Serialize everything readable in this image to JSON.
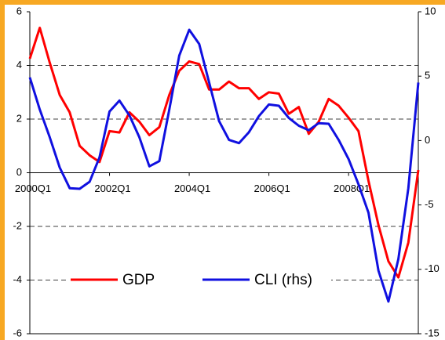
{
  "chart_data": {
    "type": "line",
    "categories": [
      "2000Q1",
      null,
      null,
      null,
      null,
      null,
      null,
      null,
      "2002Q1",
      null,
      null,
      null,
      null,
      null,
      null,
      null,
      "2004Q1",
      null,
      null,
      null,
      null,
      null,
      null,
      null,
      "2006Q1",
      null,
      null,
      null,
      null,
      null,
      null,
      null,
      "2008Q1",
      null,
      null,
      null,
      null,
      null,
      null,
      null
    ],
    "ylim": [
      -6,
      6
    ],
    "yticks": [
      -6,
      -4,
      -2,
      0,
      2,
      4,
      6
    ],
    "y2lim": [
      -15,
      10
    ],
    "y2ticks": [
      -15,
      -10,
      -5,
      0,
      5,
      10
    ],
    "grid": true,
    "legend": "lower center",
    "series": [
      {
        "name": "GDP",
        "color": "#ff0000",
        "values": [
          4.25,
          5.4,
          4.1,
          2.9,
          2.25,
          1.0,
          0.65,
          0.4,
          1.55,
          1.5,
          2.25,
          1.9,
          1.4,
          1.7,
          2.9,
          3.8,
          4.15,
          4.05,
          3.1,
          3.1,
          3.4,
          3.15,
          3.15,
          2.75,
          3.0,
          2.95,
          2.2,
          2.45,
          1.45,
          1.9,
          2.75,
          2.5,
          2.05,
          1.55,
          -0.3,
          -1.95,
          -3.3,
          -3.9,
          -2.6,
          0.1
        ]
      },
      {
        "name": "CLI (rhs)",
        "color": "#1010e0",
        "axis": "y2",
        "values": [
          4.9,
          2.4,
          0.25,
          -2.1,
          -3.7,
          -3.75,
          -3.2,
          -1.3,
          2.25,
          3.1,
          1.95,
          0.25,
          -2.0,
          -1.6,
          2.4,
          6.6,
          8.6,
          7.5,
          4.5,
          1.5,
          0.05,
          -0.2,
          0.65,
          1.9,
          2.8,
          2.7,
          1.75,
          1.15,
          0.8,
          1.35,
          1.3,
          0.05,
          -1.45,
          -3.4,
          -5.6,
          -10.1,
          -12.5,
          -9.2,
          -3.7,
          4.5
        ]
      }
    ]
  }
}
